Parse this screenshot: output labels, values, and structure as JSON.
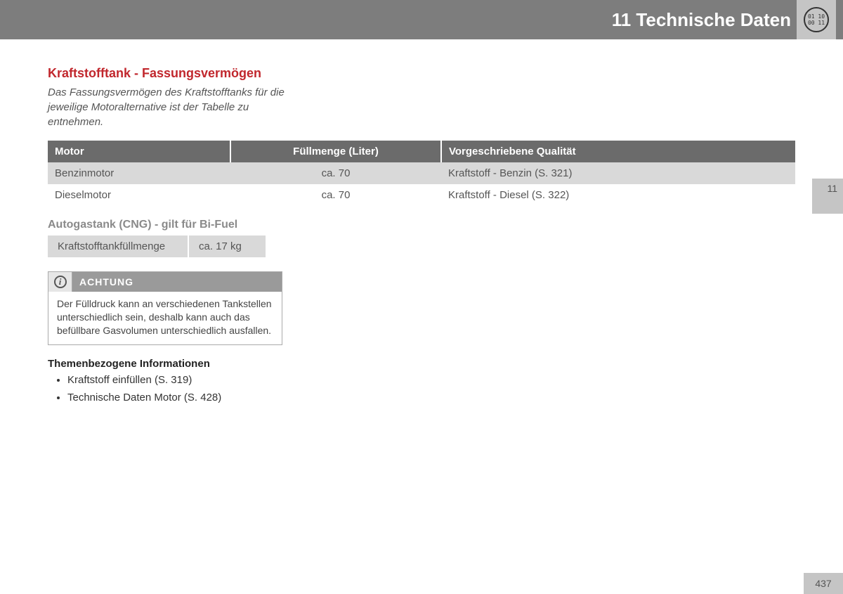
{
  "header": {
    "title": "11 Technische Daten",
    "binary_icon": "01 10\n00 11"
  },
  "section": {
    "title": "Kraftstofftank - Fassungsvermögen",
    "intro": "Das Fassungsvermögen des Kraftstofftanks für die jeweilige Motoralternative ist der Tabelle zu entnehmen."
  },
  "main_table": {
    "columns": [
      "Motor",
      "Füllmenge (Liter)",
      "Vorgeschriebene Qualität"
    ],
    "rows": [
      {
        "cells": [
          "Benzinmotor",
          "ca. 70",
          "Kraftstoff - Benzin (S. 321)"
        ],
        "bg": "light"
      },
      {
        "cells": [
          "Dieselmotor",
          "ca. 70",
          "Kraftstoff - Diesel (S. 322)"
        ],
        "bg": "white"
      }
    ]
  },
  "cng": {
    "heading": "Autogastank (CNG) - gilt für Bi-Fuel",
    "label": "Kraftstofftankfüllmenge",
    "value": "ca. 17 kg"
  },
  "note": {
    "title": "ACHTUNG",
    "body": "Der Fülldruck kann an verschiedenen Tankstellen unterschiedlich sein, deshalb kann auch das befüllbare Gasvolumen unterschiedlich ausfallen."
  },
  "related": {
    "heading": "Themenbezogene Informationen",
    "items": [
      "Kraftstoff einfüllen (S. 319)",
      "Technische Daten Motor (S. 428)"
    ]
  },
  "side_tab": "11",
  "page_number": "437"
}
